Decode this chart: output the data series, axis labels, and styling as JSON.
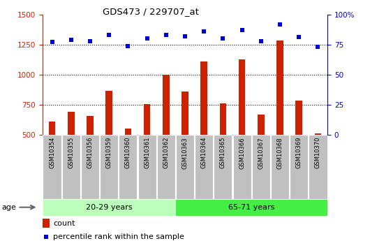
{
  "title": "GDS473 / 229707_at",
  "samples": [
    "GSM10354",
    "GSM10355",
    "GSM10356",
    "GSM10359",
    "GSM10360",
    "GSM10361",
    "GSM10362",
    "GSM10363",
    "GSM10364",
    "GSM10365",
    "GSM10366",
    "GSM10367",
    "GSM10368",
    "GSM10369",
    "GSM10370"
  ],
  "counts": [
    610,
    690,
    660,
    865,
    555,
    755,
    1000,
    860,
    1110,
    760,
    1130,
    670,
    1285,
    785,
    510
  ],
  "percentiles": [
    77,
    79,
    78,
    83,
    74,
    80,
    83,
    82,
    86,
    80,
    87,
    78,
    92,
    81,
    73
  ],
  "bar_color": "#cc2200",
  "dot_color": "#0000cc",
  "ylim_left": [
    500,
    1500
  ],
  "ylim_right": [
    0,
    100
  ],
  "yticks_left": [
    500,
    750,
    1000,
    1250,
    1500
  ],
  "yticks_right": [
    0,
    25,
    50,
    75,
    100
  ],
  "dotted_vals": [
    750,
    1000,
    1250
  ],
  "group1_label": "20-29 years",
  "group2_label": "65-71 years",
  "group1_count": 7,
  "age_label": "age",
  "legend_count": "count",
  "legend_percentile": "percentile rank within the sample",
  "group1_color": "#bbffbb",
  "group2_color": "#44ee44",
  "band_bg": "#c0c0c0",
  "bar_width": 0.35
}
